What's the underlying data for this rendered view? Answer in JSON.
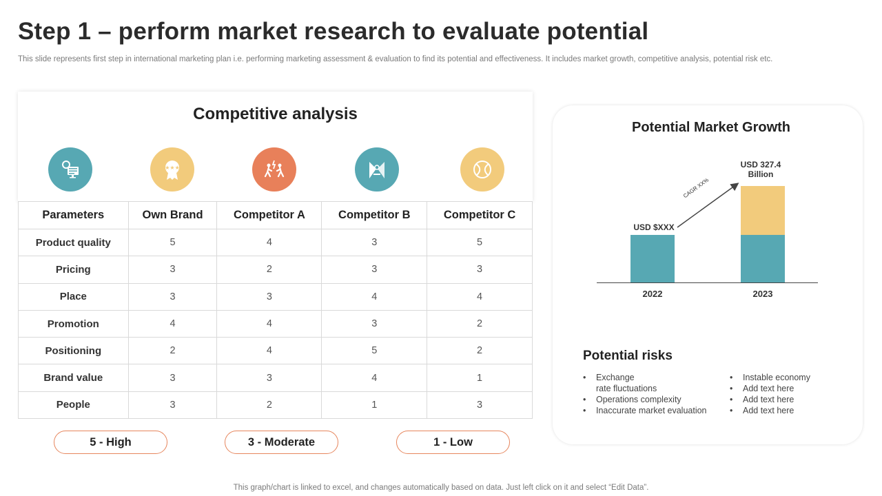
{
  "slide": {
    "title": "Step 1 – perform market research to evaluate potential",
    "subtitle": "This slide represents first step in international marketing plan i.e. performing marketing assessment & evaluation to find its potential and effectiveness. It includes market growth, competitive analysis, potential risk etc.",
    "footer": "This graph/chart is linked to excel,  and changes automatically based on data. Just left click on it and select “Edit Data”."
  },
  "competitive_analysis": {
    "title": "Competitive analysis",
    "icons": [
      {
        "name": "settings-screen-icon",
        "color": "#57a8b3"
      },
      {
        "name": "rating-award-icon",
        "color": "#f2cb7c"
      },
      {
        "name": "competition-people-icon",
        "color": "#e8805a"
      },
      {
        "name": "strategy-target-icon",
        "color": "#57a8b3"
      },
      {
        "name": "tennis-ball-icon",
        "color": "#f2cb7c"
      }
    ],
    "headers": [
      "Parameters",
      "Own Brand",
      "Competitor A",
      "Competitor B",
      "Competitor C"
    ],
    "rows": [
      [
        "Product quality",
        "5",
        "4",
        "3",
        "5"
      ],
      [
        "Pricing",
        "3",
        "2",
        "3",
        "3"
      ],
      [
        "Place",
        "3",
        "3",
        "4",
        "4"
      ],
      [
        "Promotion",
        "4",
        "4",
        "3",
        "2"
      ],
      [
        "Positioning",
        "2",
        "4",
        "5",
        "2"
      ],
      [
        "Brand value",
        "3",
        "3",
        "4",
        "1"
      ],
      [
        "People",
        "3",
        "2",
        "1",
        "3"
      ]
    ],
    "legend": [
      "5 - High",
      "3 - Moderate",
      "1 - Low"
    ]
  },
  "market_growth": {
    "title": "Potential Market Growth",
    "label_2022": "USD $XXX",
    "label_2023_line1": "USD 327.4",
    "label_2023_line2": "Billion",
    "cagr": "CAGR XX%",
    "years": [
      "2022",
      "2023"
    ],
    "colors": {
      "teal": "#57a8b3",
      "yellow": "#f2cb7c"
    }
  },
  "potential_risks": {
    "title": "Potential risks",
    "left": [
      "Exchange\nrate fluctuations",
      "Operations complexity",
      "Inaccurate market evaluation"
    ],
    "right": [
      "Instable economy",
      "Add text here",
      "Add text here",
      "Add text here"
    ]
  }
}
